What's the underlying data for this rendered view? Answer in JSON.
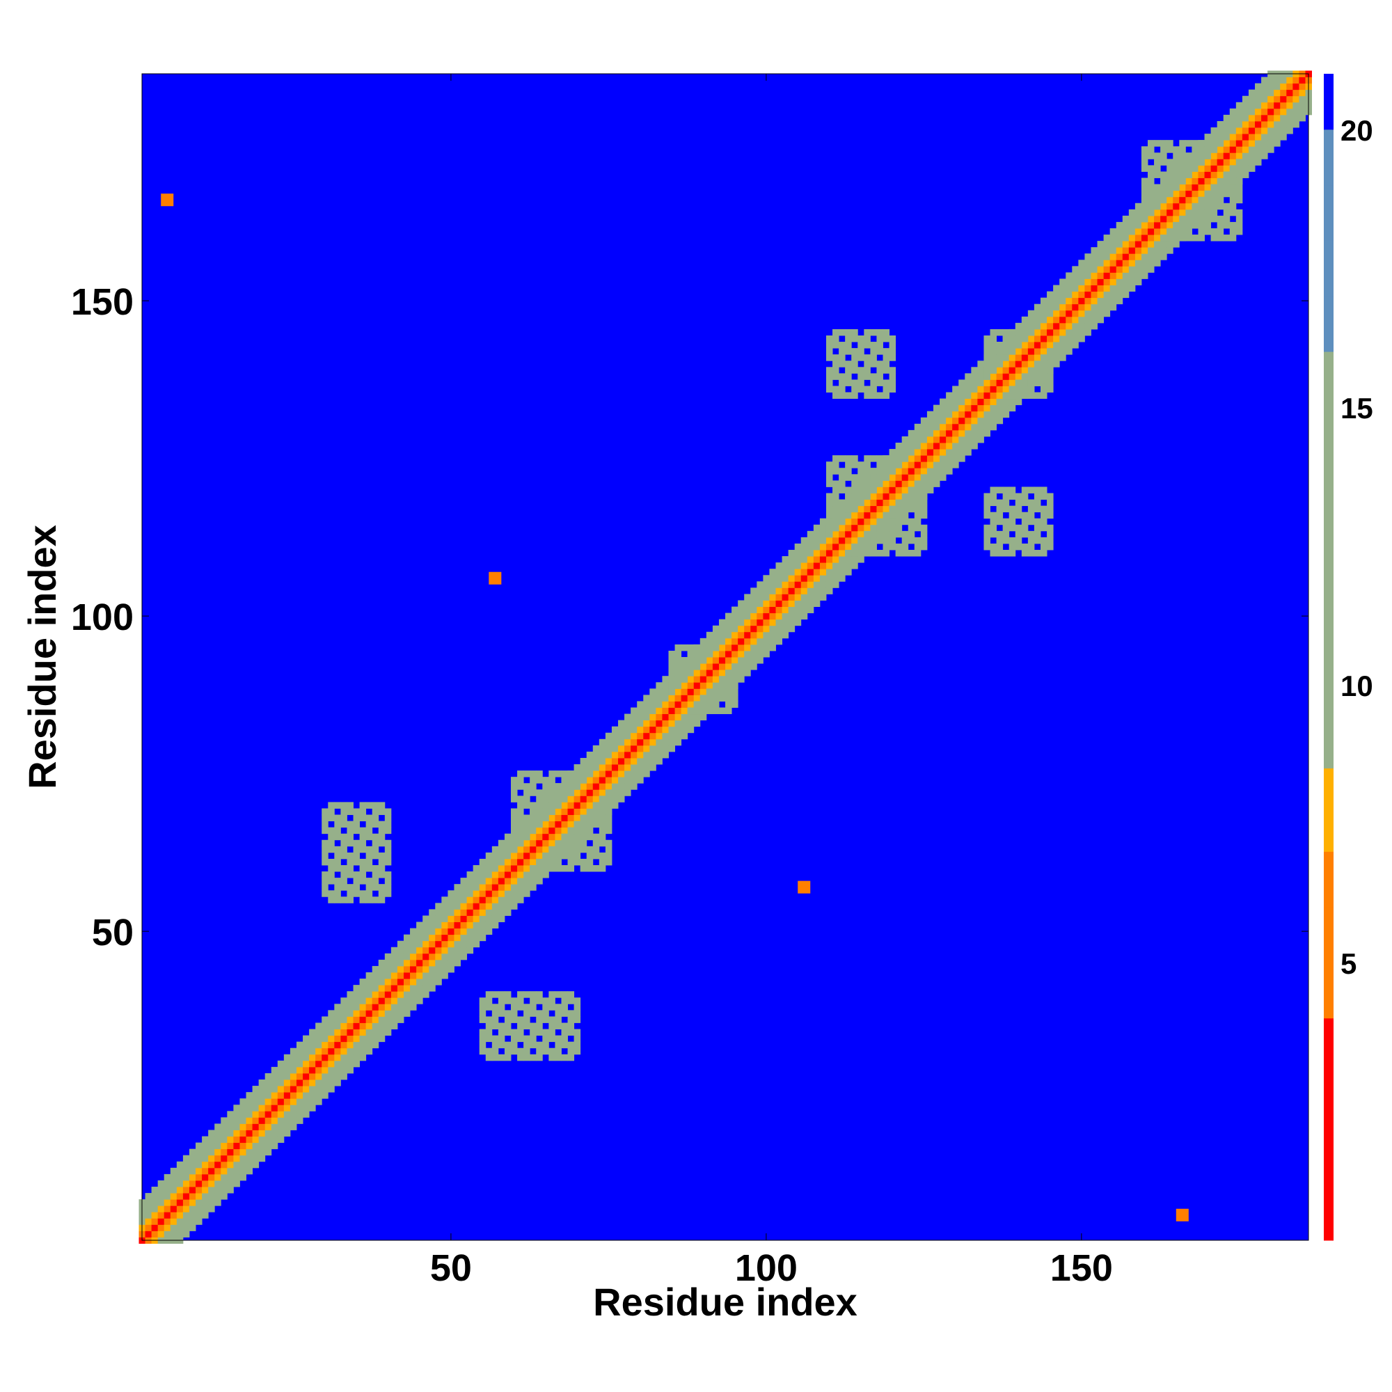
{
  "chart_data": {
    "type": "heatmap",
    "title": "",
    "xlabel": "Residue index",
    "ylabel": "Residue index",
    "xlim": [
      1,
      186
    ],
    "ylim": [
      1,
      186
    ],
    "x_ticks": [
      50,
      100,
      150
    ],
    "y_ticks": [
      50,
      100,
      150
    ],
    "colorbar": {
      "ticks": [
        5,
        10,
        15,
        20
      ],
      "range": [
        0,
        21
      ]
    },
    "grid": false,
    "colors": {
      "background": "#0000ff",
      "very_close": "#ff0000",
      "close": "#ff7f00",
      "medium": "#ffb000",
      "near": "#96b08a",
      "far": "#5e8fbe"
    },
    "contact_blocks": [
      {
        "x": [
          60,
          75
        ],
        "y": [
          60,
          75
        ],
        "level": 10
      },
      {
        "x": [
          85,
          95
        ],
        "y": [
          85,
          95
        ],
        "level": 11
      },
      {
        "x": [
          110,
          125
        ],
        "y": [
          110,
          125
        ],
        "level": 11
      },
      {
        "x": [
          135,
          145
        ],
        "y": [
          135,
          145
        ],
        "level": 12
      },
      {
        "x": [
          160,
          175
        ],
        "y": [
          160,
          175
        ],
        "level": 13
      },
      {
        "x": [
          30,
          40
        ],
        "y": [
          55,
          70
        ],
        "level": 15
      },
      {
        "x": [
          55,
          70
        ],
        "y": [
          30,
          40
        ],
        "level": 15
      },
      {
        "x": [
          110,
          120
        ],
        "y": [
          135,
          145
        ],
        "level": 15
      },
      {
        "x": [
          135,
          145
        ],
        "y": [
          110,
          120
        ],
        "level": 15
      }
    ],
    "isolated_contacts": [
      {
        "x": 57,
        "y": 106,
        "value": 5
      },
      {
        "x": 106,
        "y": 57,
        "value": 5
      },
      {
        "x": 5,
        "y": 166,
        "value": 6
      },
      {
        "x": 166,
        "y": 5,
        "value": 6
      }
    ]
  }
}
